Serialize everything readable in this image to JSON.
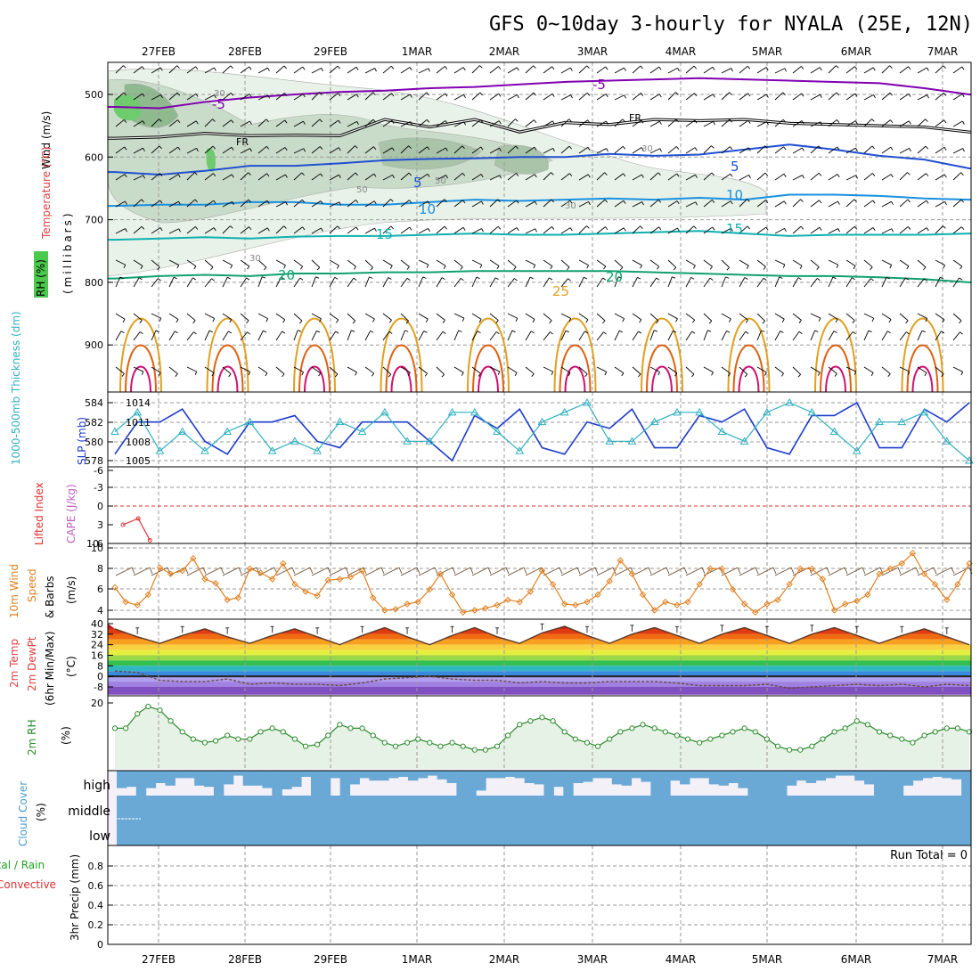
{
  "title": "GFS 0~10day 3-hourly for NYALA (25E, 12N)",
  "dates": [
    "27FEB",
    "28FEB",
    "29FEB",
    "1MAR",
    "2MAR",
    "3MAR",
    "4MAR",
    "5MAR",
    "6MAR",
    "7MAR"
  ],
  "colors": {
    "t_neg5": "#8000b0",
    "t_5": "#2050d0",
    "t_10": "#1890e0",
    "t_15": "#10b0b0",
    "t_20": "#10a070",
    "t_25": "#e0a020",
    "t_30": "#e06010",
    "t_35": "#d01070",
    "fr": "#000000",
    "rh": "#2e8b2e",
    "slp": "#1e3ccc",
    "thick": "#30b0c0",
    "lifted": "#e03030",
    "wind": "#e08020",
    "cloud": "#6aa9d6",
    "precip": "#20a020"
  },
  "panels": {
    "upper": {
      "ylabel_wind": "Wind (m/s)",
      "ylabel_temp": "Temperature (°C)",
      "ylabel_rh": "RH (%)",
      "ylabel_mb": "(millibars)",
      "ticks": [
        "500",
        "600",
        "700",
        "800",
        "900"
      ],
      "contour_labels": {
        "fr": "FR",
        "neg5": "-5",
        "p5": "5",
        "p10": "10",
        "p15": "15",
        "p20": "20",
        "p25": "25",
        "rh30": "30",
        "rh50": "50"
      }
    },
    "thickness": {
      "ylabel_thick": "1000-500mb Thickness (dm)",
      "ylabel_slp": "SLP (mb)",
      "ticks_left": [
        "584",
        "582",
        "580",
        "578"
      ],
      "ticks_right": [
        "1014",
        "1011",
        "1008",
        "1005"
      ]
    },
    "lifted": {
      "ylabel_li": "Lifted Index",
      "ylabel_cape": "CAPE (J/kg)",
      "ticks_left": [
        "-6",
        "-3",
        "0",
        "3",
        "6"
      ],
      "ticks_right": [
        "10"
      ]
    },
    "wind10": {
      "ylabel_a": "10m Wind",
      "ylabel_b": "Speed",
      "ylabel_c": "& Barbs",
      "ylabel_unit": "(m/s)",
      "ticks": [
        "10",
        "8",
        "6",
        "4"
      ]
    },
    "temp2m": {
      "ylabel_a": "2m Temp",
      "ylabel_b": "2m DewPt",
      "ylabel_c": "(6hr Min/Max)",
      "ylabel_unit": "(°C)",
      "ticks": [
        "40",
        "32",
        "24",
        "16",
        "8",
        "0",
        "-8"
      ]
    },
    "rh2m": {
      "ylabel_a": "2m RH",
      "ylabel_unit": "(%)",
      "ticks": [
        "20"
      ]
    },
    "cloud": {
      "ylabel_a": "Cloud Cover",
      "ylabel_unit": "(%)",
      "levels": [
        "high",
        "middle",
        "low"
      ]
    },
    "precip": {
      "ylabel_a": "Total / Rain",
      "ylabel_b": "Convective",
      "ylabel_c": "3hr Precip (mm)",
      "ticks": [
        "0.8",
        "0.6",
        "0.4",
        "0.2",
        "0"
      ],
      "run_total": "Run Total = 0"
    }
  },
  "chart_data": [
    {
      "type": "line",
      "name": "temperature-contours-upper",
      "x_unit": "days from 26FEB 00Z",
      "y_unit": "mb",
      "ylim": [
        1000,
        450
      ],
      "x": [
        0.5,
        1.0,
        1.5,
        2.0,
        2.5,
        3.0,
        3.5,
        4.0,
        4.5,
        5.0,
        5.5,
        6.0,
        6.5,
        7.0,
        7.5,
        8.0,
        8.5,
        9.0,
        9.5,
        10.0
      ],
      "series": [
        {
          "name": "-5",
          "values": [
            520,
            522,
            512,
            505,
            500,
            496,
            494,
            490,
            488,
            484,
            480,
            478,
            476,
            474,
            476,
            478,
            480,
            482,
            490,
            500
          ]
        },
        {
          "name": "FR",
          "values": [
            570,
            568,
            562,
            566,
            565,
            566,
            540,
            552,
            540,
            560,
            545,
            548,
            540,
            542,
            540,
            546,
            548,
            550,
            552,
            560
          ]
        },
        {
          "name": "5",
          "values": [
            624,
            628,
            622,
            614,
            614,
            610,
            605,
            603,
            602,
            600,
            600,
            595,
            598,
            596,
            588,
            580,
            588,
            598,
            604,
            618
          ]
        },
        {
          "name": "10",
          "values": [
            678,
            676,
            676,
            672,
            672,
            676,
            676,
            672,
            668,
            670,
            668,
            666,
            668,
            665,
            668,
            660,
            660,
            662,
            666,
            668
          ]
        },
        {
          "name": "15",
          "values": [
            732,
            730,
            728,
            730,
            727,
            726,
            726,
            724,
            722,
            724,
            724,
            722,
            720,
            718,
            722,
            726,
            724,
            724,
            724,
            722
          ]
        },
        {
          "name": "20",
          "values": [
            794,
            790,
            788,
            790,
            786,
            786,
            784,
            784,
            782,
            782,
            782,
            782,
            784,
            786,
            788,
            790,
            790,
            792,
            795,
            800
          ]
        }
      ]
    },
    {
      "type": "line",
      "name": "thickness-slp",
      "x": [
        0.5,
        0.75,
        1.0,
        1.25,
        1.5,
        1.75,
        2.0,
        2.25,
        2.5,
        2.75,
        3.0,
        3.25,
        3.5,
        3.75,
        4.0,
        4.25,
        4.5,
        4.75,
        5.0,
        5.25,
        5.5,
        5.75,
        6.0,
        6.25,
        6.5,
        6.75,
        7.0,
        7.25,
        7.5,
        7.75,
        8.0,
        8.25,
        8.5,
        8.75,
        9.0,
        9.25,
        9.5,
        9.75,
        10.0
      ],
      "series": [
        {
          "name": "SLP",
          "unit": "mb",
          "values": [
            1006,
            1011,
            1011,
            1013,
            1008,
            1006,
            1011,
            1011,
            1012,
            1008,
            1007,
            1011,
            1011,
            1011,
            1008,
            1005,
            1012,
            1010,
            1013,
            1007,
            1006,
            1011,
            1010,
            1013,
            1007,
            1007,
            1012,
            1011,
            1013,
            1007,
            1006,
            1012,
            1012,
            1014,
            1007,
            1007,
            1013,
            1011,
            1014
          ]
        },
        {
          "name": "Thickness",
          "unit": "dm",
          "values": [
            581,
            583,
            579,
            581,
            579,
            581,
            582,
            579,
            580,
            579,
            582,
            581,
            583,
            580,
            580,
            583,
            583,
            581,
            579,
            582,
            583,
            584,
            580,
            580,
            582,
            583,
            583,
            581,
            580,
            583,
            584,
            583,
            581,
            579,
            582,
            582,
            583,
            580,
            578
          ]
        }
      ]
    },
    {
      "type": "line",
      "name": "lifted-index",
      "x": [
        0.55,
        0.72,
        0.85
      ],
      "series": [
        {
          "name": "Lifted Index",
          "values": [
            3,
            2,
            5.5
          ]
        }
      ],
      "ylim": [
        -6,
        6
      ]
    },
    {
      "type": "line",
      "name": "wind10m",
      "x": [
        0.5,
        0.62,
        0.75,
        0.87,
        1.0,
        1.12,
        1.25,
        1.37,
        1.5,
        1.62,
        1.75,
        1.87,
        2.0,
        2.12,
        2.25,
        2.37,
        2.5,
        2.62,
        2.75,
        2.87,
        3.0,
        3.12,
        3.25,
        3.37,
        3.5,
        3.62,
        3.75,
        3.87,
        4.0,
        4.12,
        4.25,
        4.37,
        4.5,
        4.62,
        4.75,
        4.87,
        5.0,
        5.12,
        5.25,
        5.37,
        5.5,
        5.62,
        5.75,
        5.87,
        6.0,
        6.12,
        6.25,
        6.37,
        6.5,
        6.62,
        6.75,
        6.87,
        7.0,
        7.12,
        7.25,
        7.37,
        7.5,
        7.62,
        7.75,
        7.87,
        8.0,
        8.12,
        8.25,
        8.37,
        8.5,
        8.62,
        8.75,
        8.87,
        9.0,
        9.12,
        9.25,
        9.37,
        9.5,
        9.62,
        9.75,
        9.87,
        10.0
      ],
      "series": [
        {
          "name": "Speed",
          "unit": "m/s",
          "values": [
            6.2,
            4.8,
            4.5,
            5.5,
            8.1,
            7.5,
            7.8,
            9.0,
            7.0,
            6.6,
            5.0,
            5.2,
            8.0,
            7.6,
            7.0,
            8.5,
            6.5,
            5.8,
            5.4,
            6.9,
            7.0,
            7.2,
            7.8,
            5.2,
            4.0,
            4.1,
            4.6,
            4.8,
            6.0,
            7.5,
            5.5,
            3.8,
            4.0,
            4.2,
            4.5,
            5.0,
            4.8,
            5.8,
            7.8,
            6.5,
            4.6,
            4.5,
            4.8,
            5.5,
            6.8,
            8.8,
            7.5,
            5.5,
            4.0,
            4.8,
            4.5,
            4.8,
            6.5,
            8.0,
            8.0,
            6.0,
            4.6,
            3.8,
            4.6,
            5.0,
            6.5,
            8.0,
            8.0,
            7.0,
            4.0,
            4.6,
            4.9,
            5.5,
            7.5,
            8.0,
            8.5,
            9.5,
            7.5,
            6.5,
            5.0,
            6.5,
            8.5
          ]
        }
      ],
      "ylim": [
        3.5,
        10
      ]
    },
    {
      "type": "area",
      "name": "temp2m",
      "x": [
        0.5,
        0.75,
        1.0,
        1.25,
        1.5,
        1.75,
        2.0,
        2.25,
        2.5,
        2.75,
        3.0,
        3.25,
        3.5,
        3.75,
        4.0,
        4.25,
        4.5,
        4.75,
        5.0,
        5.25,
        5.5,
        5.75,
        6.0,
        6.25,
        6.5,
        6.75,
        7.0,
        7.25,
        7.5,
        7.75,
        8.0,
        8.25,
        8.5,
        8.75,
        9.0,
        9.25,
        9.5,
        9.75,
        10.0
      ],
      "series": [
        {
          "name": "Temp",
          "unit": "°C",
          "values": [
            36,
            30,
            25,
            31,
            36,
            30,
            25,
            31,
            36,
            30,
            24,
            31,
            37,
            30,
            24,
            31,
            37,
            30,
            25,
            33,
            38,
            31,
            25,
            32,
            37,
            31,
            25,
            32,
            37,
            31,
            25,
            32,
            37,
            31,
            25,
            31,
            36,
            30,
            24
          ]
        },
        {
          "name": "DewPt",
          "unit": "°C",
          "values": [
            4,
            3,
            -3,
            -4,
            -4,
            -2,
            -6,
            -5,
            -6,
            -6,
            -7,
            -5,
            -2,
            -1,
            0,
            -2,
            -3,
            -3,
            -5,
            -4,
            -5,
            -5,
            -4,
            -4,
            -4,
            -5,
            -7,
            -7,
            -7,
            -6,
            -9,
            -8,
            -7,
            -6,
            -7,
            -6,
            -8,
            -6,
            -7
          ]
        }
      ],
      "ylim": [
        -14,
        42
      ]
    },
    {
      "type": "line",
      "name": "rh2m",
      "x": [
        0.5,
        0.62,
        0.75,
        0.87,
        1.0,
        1.12,
        1.25,
        1.37,
        1.5,
        1.62,
        1.75,
        1.87,
        2.0,
        2.12,
        2.25,
        2.37,
        2.5,
        2.62,
        2.75,
        2.87,
        3.0,
        3.12,
        3.25,
        3.37,
        3.5,
        3.62,
        3.75,
        3.87,
        4.0,
        4.12,
        4.25,
        4.37,
        4.5,
        4.62,
        4.75,
        4.87,
        5.0,
        5.12,
        5.25,
        5.37,
        5.5,
        5.62,
        5.75,
        5.87,
        6.0,
        6.12,
        6.25,
        6.37,
        6.5,
        6.62,
        6.75,
        6.87,
        7.0,
        7.12,
        7.25,
        7.37,
        7.5,
        7.62,
        7.75,
        7.87,
        8.0,
        8.12,
        8.25,
        8.37,
        8.5,
        8.62,
        8.75,
        8.87,
        9.0,
        9.12,
        9.25,
        9.37,
        9.5,
        9.62,
        9.75,
        9.87,
        10.0
      ],
      "series": [
        {
          "name": "RH",
          "unit": "%",
          "values": [
            13,
            13,
            17,
            19,
            18,
            15,
            12,
            10,
            9,
            9.5,
            11,
            10,
            10,
            12,
            13,
            12,
            10,
            8,
            8.5,
            11,
            14,
            13,
            13,
            11,
            9,
            8,
            9,
            10,
            9,
            8,
            9,
            8,
            7,
            7,
            8,
            11,
            14,
            15,
            16,
            15,
            12,
            10,
            9,
            8,
            10,
            12,
            13,
            14,
            13,
            12,
            11,
            10,
            9,
            10,
            11,
            12,
            13,
            12,
            10,
            8,
            7,
            7,
            8,
            10,
            12,
            13,
            15,
            14,
            12,
            11,
            10,
            9,
            11,
            12,
            13,
            13,
            12
          ]
        }
      ],
      "ylim": [
        2,
        22
      ]
    },
    {
      "type": "bar",
      "name": "cloud-high",
      "unit": "%",
      "values": [
        70,
        65,
        100,
        70,
        50,
        60,
        30,
        30,
        60,
        65,
        100,
        55,
        20,
        60,
        60,
        70,
        100,
        75,
        65,
        25,
        100,
        100,
        30,
        100,
        55,
        30,
        40,
        40,
        30,
        25,
        40,
        30,
        20,
        35,
        50,
        100,
        100,
        80,
        30,
        30,
        25,
        30,
        50,
        55,
        100,
        65,
        100,
        50,
        45,
        30,
        30,
        55,
        60,
        30,
        45,
        100,
        100,
        40,
        55,
        30,
        30,
        55,
        60,
        50,
        70,
        100,
        100,
        100,
        100,
        60,
        40,
        50,
        40,
        30,
        20,
        20,
        40,
        55,
        100,
        100,
        100,
        60,
        40,
        30,
        25,
        30,
        35,
        100
      ]
    },
    {
      "type": "bar",
      "name": "precip-3hr",
      "unit": "mm",
      "values": [],
      "ylim": [
        0,
        0.95
      ]
    }
  ]
}
